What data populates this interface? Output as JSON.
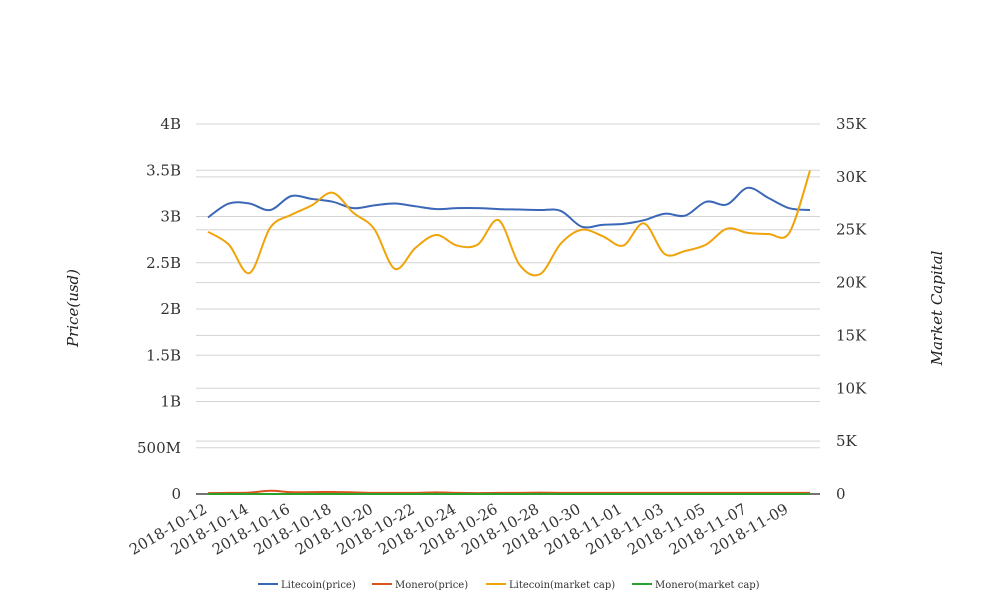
{
  "chart_data": {
    "type": "line",
    "x": [
      "2018-10-12",
      "2018-10-13",
      "2018-10-14",
      "2018-10-15",
      "2018-10-16",
      "2018-10-17",
      "2018-10-18",
      "2018-10-19",
      "2018-10-20",
      "2018-10-21",
      "2018-10-22",
      "2018-10-23",
      "2018-10-24",
      "2018-10-25",
      "2018-10-26",
      "2018-10-27",
      "2018-10-28",
      "2018-10-29",
      "2018-10-30",
      "2018-10-31",
      "2018-11-01",
      "2018-11-02",
      "2018-11-03",
      "2018-11-04",
      "2018-11-05",
      "2018-11-06",
      "2018-11-07",
      "2018-11-08",
      "2018-11-09",
      "2018-11-10"
    ],
    "x_tick_labels": [
      "2018-10-12",
      "2018-10-14",
      "2018-10-16",
      "2018-10-18",
      "2018-10-20",
      "2018-10-22",
      "2018-10-24",
      "2018-10-26",
      "2018-10-28",
      "2018-10-30",
      "2018-11-01",
      "2018-11-03",
      "2018-11-05",
      "2018-11-07",
      "2018-11-09"
    ],
    "ylabel_left": "Price(usd)",
    "ylabel_right": "Market Capital",
    "ylim_left": [
      0,
      4000000000
    ],
    "ylim_right": [
      0,
      35000
    ],
    "left_tick_labels": [
      "0",
      "500M",
      "1B",
      "1.5B",
      "2B",
      "2.5B",
      "3B",
      "3.5B",
      "4B"
    ],
    "right_tick_labels": [
      "0",
      "5K",
      "10K",
      "15K",
      "20K",
      "25K",
      "30K",
      "35K"
    ],
    "grid": true,
    "legend_position": "bottom",
    "series": [
      {
        "name": "Litecoin(price)",
        "axis": "left",
        "color": "#3b67b8",
        "values": [
          2990000000,
          3140000000,
          3140000000,
          3070000000,
          3220000000,
          3190000000,
          3160000000,
          3090000000,
          3120000000,
          3140000000,
          3110000000,
          3080000000,
          3090000000,
          3090000000,
          3080000000,
          3075000000,
          3070000000,
          3060000000,
          2890000000,
          2910000000,
          2920000000,
          2960000000,
          3030000000,
          3010000000,
          3160000000,
          3130000000,
          3310000000,
          3200000000,
          3090000000,
          3070000000
        ]
      },
      {
        "name": "Monero(price)",
        "axis": "left",
        "color": "#d9531e",
        "values": [
          10000000,
          12000000,
          15000000,
          35000000,
          20000000,
          20000000,
          22000000,
          18000000,
          12000000,
          12000000,
          12000000,
          18000000,
          12000000,
          10000000,
          12000000,
          12000000,
          15000000,
          12000000,
          12000000,
          12000000,
          12000000,
          12000000,
          12000000,
          12000000,
          12000000,
          12000000,
          12000000,
          12000000,
          12000000,
          12000000
        ]
      },
      {
        "name": "Litecoin(market cap)",
        "axis": "right",
        "color": "#f0a30a",
        "values": [
          24800,
          23600,
          20900,
          25200,
          26400,
          27300,
          28500,
          26600,
          25100,
          21300,
          23300,
          24500,
          23500,
          23600,
          25900,
          21700,
          20800,
          23700,
          25000,
          24400,
          23500,
          25600,
          22700,
          23000,
          23600,
          25100,
          24700,
          24600,
          24700,
          30600
        ]
      },
      {
        "name": "Monero(market cap)",
        "axis": "right",
        "color": "#2ca02c",
        "values": [
          5,
          5,
          5,
          5,
          5,
          5,
          5,
          5,
          5,
          5,
          5,
          5,
          5,
          5,
          5,
          5,
          5,
          5,
          5,
          5,
          5,
          5,
          5,
          5,
          5,
          5,
          5,
          5,
          5,
          5
        ]
      }
    ]
  }
}
